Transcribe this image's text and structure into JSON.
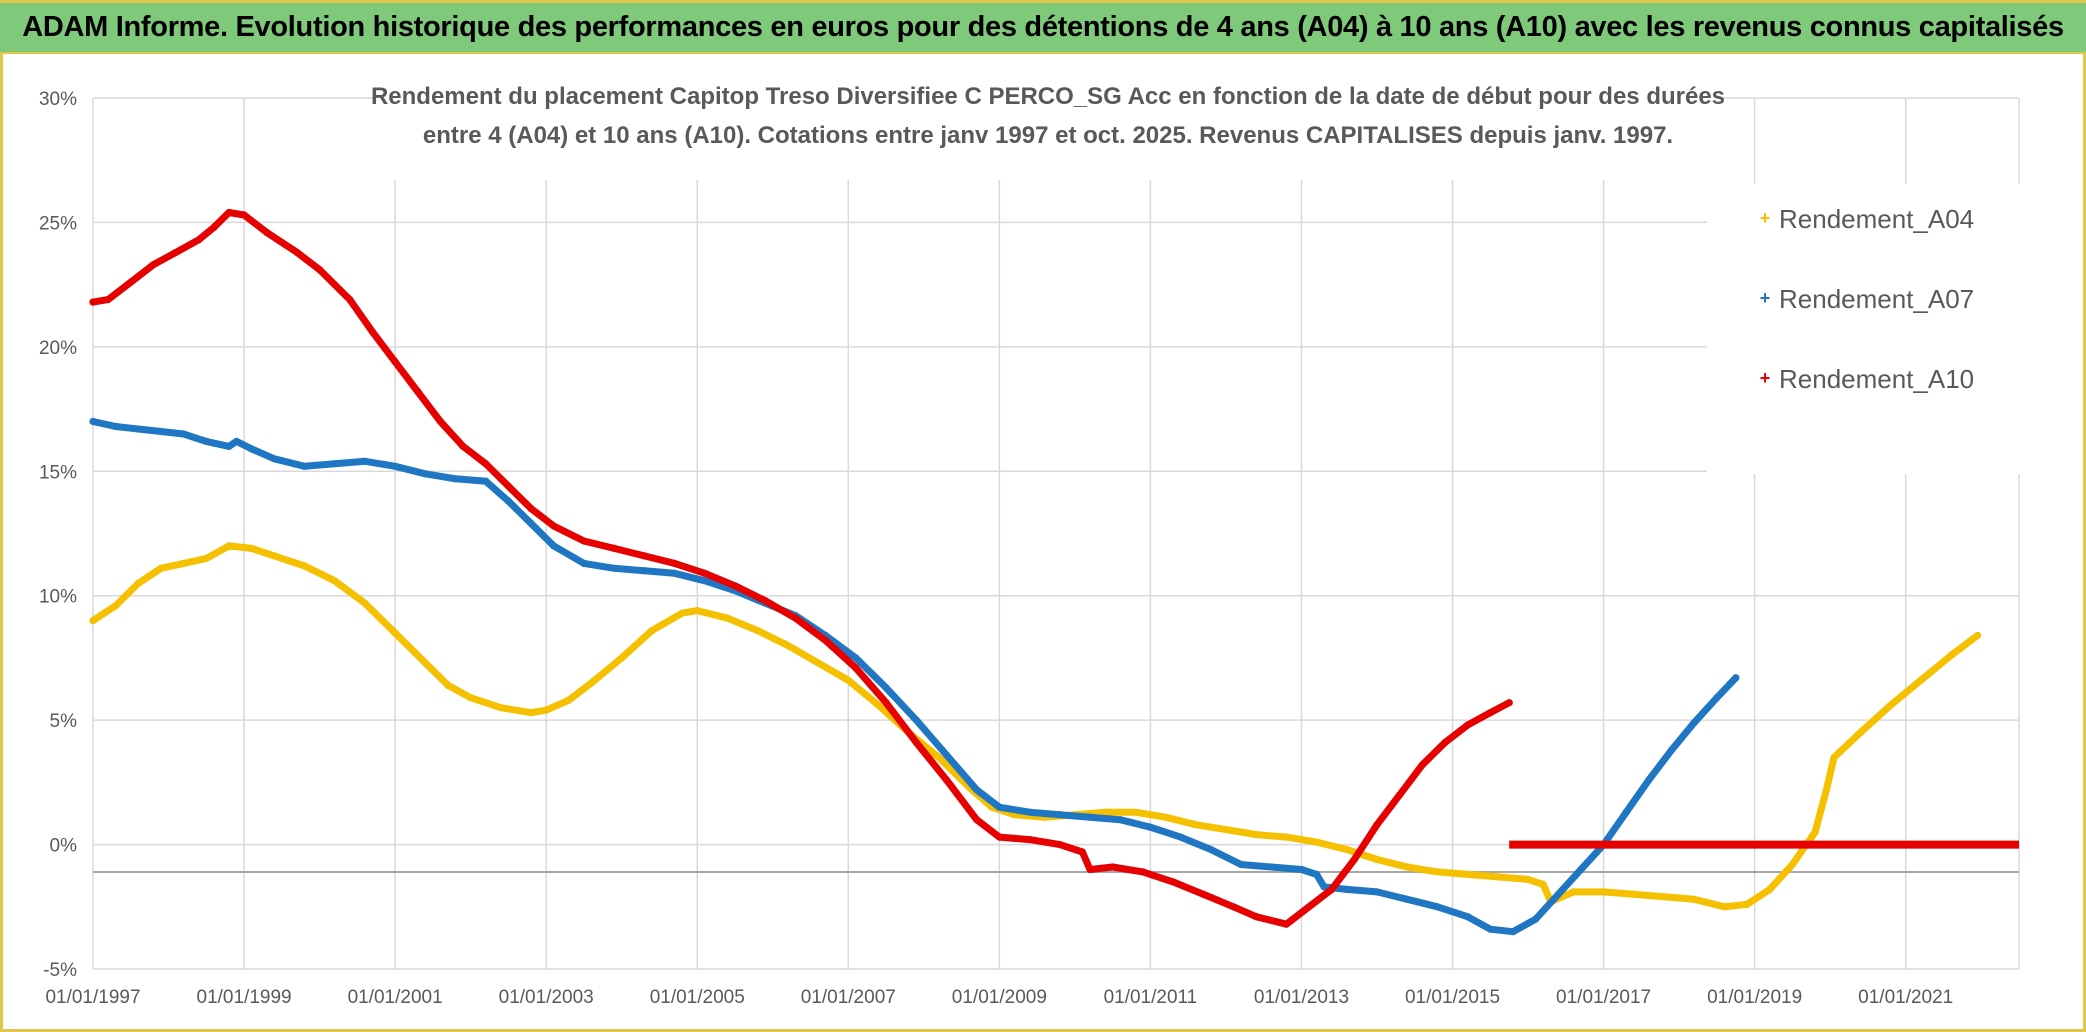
{
  "banner": {
    "title": "ADAM Informe. Evolution historique des performances en euros pour des détentions de 4 ans (A04) à 10 ans (A10) avec les revenus connus capitalisés"
  },
  "colors": {
    "banner_bg": "#7fc97a",
    "frame": "#e2c84a",
    "grid": "#d9d9d9",
    "axis_text": "#595959",
    "title_text": "#595959"
  },
  "chart_data": {
    "type": "scatter",
    "title_lines": [
      "Rendement du placement Capitop Treso Diversifiee C PERCO_SG Acc en fonction de la date de début pour des durées",
      "entre 4 (A04) et 10 ans (A10). Cotations entre janv 1997 et oct. 2025. Revenus CAPITALISES depuis janv. 1997."
    ],
    "xlabel": "",
    "ylabel": "",
    "x_range": [
      1997.0,
      2022.5
    ],
    "ylim": [
      -5,
      30
    ],
    "x_ticks": [
      {
        "value": 1997,
        "label": "01/01/1997"
      },
      {
        "value": 1999,
        "label": "01/01/1999"
      },
      {
        "value": 2001,
        "label": "01/01/2001"
      },
      {
        "value": 2003,
        "label": "01/01/2003"
      },
      {
        "value": 2005,
        "label": "01/01/2005"
      },
      {
        "value": 2007,
        "label": "01/01/2007"
      },
      {
        "value": 2009,
        "label": "01/01/2009"
      },
      {
        "value": 2011,
        "label": "01/01/2011"
      },
      {
        "value": 2013,
        "label": "01/01/2013"
      },
      {
        "value": 2015,
        "label": "01/01/2015"
      },
      {
        "value": 2017,
        "label": "01/01/2017"
      },
      {
        "value": 2019,
        "label": "01/01/2019"
      },
      {
        "value": 2021,
        "label": "01/01/2021"
      }
    ],
    "y_ticks": [
      {
        "value": 30,
        "label": "30%"
      },
      {
        "value": 25,
        "label": "25%"
      },
      {
        "value": 20,
        "label": "20%"
      },
      {
        "value": 15,
        "label": "15%"
      },
      {
        "value": 10,
        "label": "10%"
      },
      {
        "value": 5,
        "label": "5%"
      },
      {
        "value": 0,
        "label": "0%"
      },
      {
        "value": -5,
        "label": "-5%"
      }
    ],
    "grid": true,
    "legend_position": "right",
    "marker": "+",
    "series": [
      {
        "name": "Rendement_A04",
        "color": "#f5c000",
        "points": [
          [
            1997.0,
            9.0
          ],
          [
            1997.3,
            9.6
          ],
          [
            1997.6,
            10.5
          ],
          [
            1997.9,
            11.1
          ],
          [
            1998.2,
            11.3
          ],
          [
            1998.5,
            11.5
          ],
          [
            1998.8,
            12.0
          ],
          [
            1999.1,
            11.9
          ],
          [
            1999.4,
            11.6
          ],
          [
            1999.8,
            11.2
          ],
          [
            2000.2,
            10.6
          ],
          [
            2000.6,
            9.7
          ],
          [
            2001.0,
            8.5
          ],
          [
            2001.4,
            7.3
          ],
          [
            2001.7,
            6.4
          ],
          [
            2002.0,
            5.9
          ],
          [
            2002.4,
            5.5
          ],
          [
            2002.8,
            5.3
          ],
          [
            2003.0,
            5.4
          ],
          [
            2003.3,
            5.8
          ],
          [
            2003.6,
            6.5
          ],
          [
            2004.0,
            7.5
          ],
          [
            2004.4,
            8.6
          ],
          [
            2004.8,
            9.3
          ],
          [
            2005.0,
            9.4
          ],
          [
            2005.4,
            9.1
          ],
          [
            2005.8,
            8.6
          ],
          [
            2006.2,
            8.0
          ],
          [
            2006.6,
            7.3
          ],
          [
            2007.0,
            6.6
          ],
          [
            2007.4,
            5.6
          ],
          [
            2007.8,
            4.5
          ],
          [
            2008.2,
            3.5
          ],
          [
            2008.6,
            2.3
          ],
          [
            2008.9,
            1.5
          ],
          [
            2009.2,
            1.2
          ],
          [
            2009.6,
            1.1
          ],
          [
            2010.0,
            1.2
          ],
          [
            2010.4,
            1.3
          ],
          [
            2010.8,
            1.3
          ],
          [
            2011.2,
            1.1
          ],
          [
            2011.6,
            0.8
          ],
          [
            2012.0,
            0.6
          ],
          [
            2012.4,
            0.4
          ],
          [
            2012.8,
            0.3
          ],
          [
            2013.2,
            0.1
          ],
          [
            2013.6,
            -0.2
          ],
          [
            2014.0,
            -0.6
          ],
          [
            2014.4,
            -0.9
          ],
          [
            2014.8,
            -1.1
          ],
          [
            2015.2,
            -1.2
          ],
          [
            2015.6,
            -1.3
          ],
          [
            2016.0,
            -1.4
          ],
          [
            2016.2,
            -1.6
          ],
          [
            2016.3,
            -2.3
          ],
          [
            2016.6,
            -1.9
          ],
          [
            2017.0,
            -1.9
          ],
          [
            2017.4,
            -2.0
          ],
          [
            2017.8,
            -2.1
          ],
          [
            2018.2,
            -2.2
          ],
          [
            2018.6,
            -2.5
          ],
          [
            2018.9,
            -2.4
          ],
          [
            2019.2,
            -1.8
          ],
          [
            2019.5,
            -0.8
          ],
          [
            2019.8,
            0.5
          ],
          [
            2019.95,
            2.2
          ],
          [
            2020.05,
            3.5
          ],
          [
            2020.4,
            4.5
          ],
          [
            2020.8,
            5.6
          ],
          [
            2021.2,
            6.6
          ],
          [
            2021.6,
            7.6
          ],
          [
            2021.95,
            8.4
          ]
        ]
      },
      {
        "name": "Rendement_A07",
        "color": "#1f77c4",
        "points": [
          [
            1997.0,
            17.0
          ],
          [
            1997.3,
            16.8
          ],
          [
            1997.6,
            16.7
          ],
          [
            1997.9,
            16.6
          ],
          [
            1998.2,
            16.5
          ],
          [
            1998.5,
            16.2
          ],
          [
            1998.8,
            16.0
          ],
          [
            1998.9,
            16.2
          ],
          [
            1999.1,
            15.9
          ],
          [
            1999.4,
            15.5
          ],
          [
            1999.8,
            15.2
          ],
          [
            2000.2,
            15.3
          ],
          [
            2000.6,
            15.4
          ],
          [
            2001.0,
            15.2
          ],
          [
            2001.4,
            14.9
          ],
          [
            2001.8,
            14.7
          ],
          [
            2002.2,
            14.6
          ],
          [
            2002.5,
            13.8
          ],
          [
            2002.8,
            12.9
          ],
          [
            2003.1,
            12.0
          ],
          [
            2003.5,
            11.3
          ],
          [
            2003.9,
            11.1
          ],
          [
            2004.3,
            11.0
          ],
          [
            2004.7,
            10.9
          ],
          [
            2005.1,
            10.6
          ],
          [
            2005.5,
            10.2
          ],
          [
            2005.9,
            9.7
          ],
          [
            2006.3,
            9.2
          ],
          [
            2006.7,
            8.4
          ],
          [
            2007.1,
            7.5
          ],
          [
            2007.5,
            6.3
          ],
          [
            2007.9,
            5.0
          ],
          [
            2008.3,
            3.6
          ],
          [
            2008.7,
            2.2
          ],
          [
            2009.0,
            1.5
          ],
          [
            2009.4,
            1.3
          ],
          [
            2009.8,
            1.2
          ],
          [
            2010.2,
            1.1
          ],
          [
            2010.6,
            1.0
          ],
          [
            2011.0,
            0.7
          ],
          [
            2011.4,
            0.3
          ],
          [
            2011.8,
            -0.2
          ],
          [
            2012.2,
            -0.8
          ],
          [
            2012.6,
            -0.9
          ],
          [
            2013.0,
            -1.0
          ],
          [
            2013.2,
            -1.2
          ],
          [
            2013.3,
            -1.7
          ],
          [
            2013.6,
            -1.8
          ],
          [
            2014.0,
            -1.9
          ],
          [
            2014.4,
            -2.2
          ],
          [
            2014.8,
            -2.5
          ],
          [
            2015.2,
            -2.9
          ],
          [
            2015.5,
            -3.4
          ],
          [
            2015.8,
            -3.5
          ],
          [
            2016.1,
            -3.0
          ],
          [
            2016.4,
            -2.0
          ],
          [
            2016.7,
            -1.0
          ],
          [
            2017.0,
            0.0
          ],
          [
            2017.3,
            1.3
          ],
          [
            2017.6,
            2.6
          ],
          [
            2017.9,
            3.8
          ],
          [
            2018.2,
            4.9
          ],
          [
            2018.5,
            5.9
          ],
          [
            2018.75,
            6.7
          ]
        ]
      },
      {
        "name": "Rendement_A10",
        "color": "#e60000",
        "points": [
          [
            1997.0,
            21.8
          ],
          [
            1997.2,
            21.9
          ],
          [
            1997.5,
            22.6
          ],
          [
            1997.8,
            23.3
          ],
          [
            1998.1,
            23.8
          ],
          [
            1998.4,
            24.3
          ],
          [
            1998.6,
            24.8
          ],
          [
            1998.8,
            25.4
          ],
          [
            1999.0,
            25.3
          ],
          [
            1999.3,
            24.6
          ],
          [
            1999.7,
            23.8
          ],
          [
            2000.0,
            23.1
          ],
          [
            2000.4,
            21.9
          ],
          [
            2000.7,
            20.6
          ],
          [
            2001.0,
            19.4
          ],
          [
            2001.3,
            18.2
          ],
          [
            2001.6,
            17.0
          ],
          [
            2001.9,
            16.0
          ],
          [
            2002.2,
            15.3
          ],
          [
            2002.5,
            14.4
          ],
          [
            2002.8,
            13.5
          ],
          [
            2003.1,
            12.8
          ],
          [
            2003.5,
            12.2
          ],
          [
            2003.9,
            11.9
          ],
          [
            2004.3,
            11.6
          ],
          [
            2004.7,
            11.3
          ],
          [
            2005.1,
            10.9
          ],
          [
            2005.5,
            10.4
          ],
          [
            2005.9,
            9.8
          ],
          [
            2006.3,
            9.1
          ],
          [
            2006.7,
            8.2
          ],
          [
            2007.1,
            7.1
          ],
          [
            2007.5,
            5.7
          ],
          [
            2007.9,
            4.1
          ],
          [
            2008.3,
            2.6
          ],
          [
            2008.7,
            1.0
          ],
          [
            2009.0,
            0.3
          ],
          [
            2009.4,
            0.2
          ],
          [
            2009.8,
            0.0
          ],
          [
            2010.1,
            -0.3
          ],
          [
            2010.2,
            -1.0
          ],
          [
            2010.5,
            -0.9
          ],
          [
            2010.9,
            -1.1
          ],
          [
            2011.3,
            -1.5
          ],
          [
            2011.7,
            -2.0
          ],
          [
            2012.1,
            -2.5
          ],
          [
            2012.4,
            -2.9
          ],
          [
            2012.8,
            -3.2
          ],
          [
            2013.1,
            -2.5
          ],
          [
            2013.4,
            -1.8
          ],
          [
            2013.7,
            -0.6
          ],
          [
            2014.0,
            0.8
          ],
          [
            2014.3,
            2.0
          ],
          [
            2014.6,
            3.2
          ],
          [
            2014.9,
            4.1
          ],
          [
            2015.2,
            4.8
          ],
          [
            2015.5,
            5.3
          ],
          [
            2015.75,
            5.7
          ]
        ],
        "flat_segment": {
          "x_start": 2015.75,
          "x_end": 2022.5,
          "value": 0.0
        }
      }
    ]
  }
}
